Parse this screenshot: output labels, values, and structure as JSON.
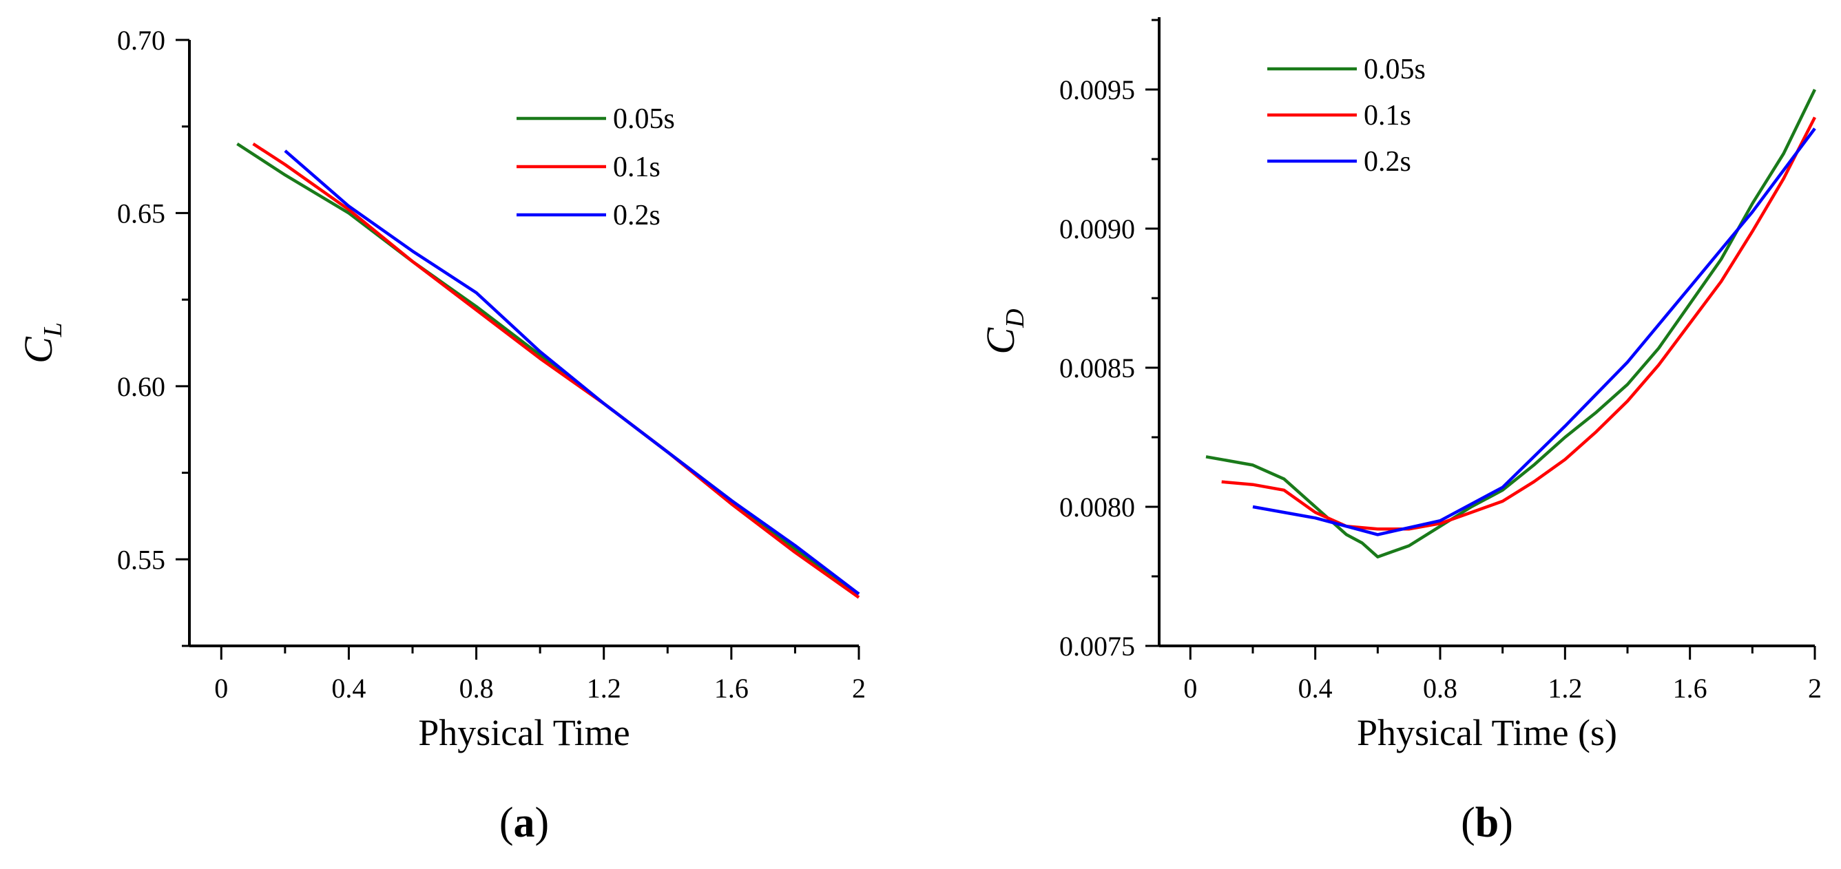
{
  "chart_data": [
    {
      "type": "line",
      "panel_label": "(a)",
      "xlabel": "Physical Time",
      "ylabel": "C",
      "ylabel_sub": "L",
      "xlim": [
        -0.1,
        2.0
      ],
      "ylim": [
        0.525,
        0.7
      ],
      "xticks": [
        0,
        0.4,
        0.8,
        1.2,
        1.6,
        2.0
      ],
      "xtick_labels": [
        "0",
        "0.4",
        "0.8",
        "1.2",
        "1.6",
        "2"
      ],
      "yticks": [
        0.55,
        0.6,
        0.65,
        0.7
      ],
      "ytick_labels": [
        "0.55",
        "0.60",
        "0.65",
        "0.70"
      ],
      "legend_position": "top-right",
      "series": [
        {
          "name": "0.05s",
          "color": "#1a7a1a",
          "x": [
            0.05,
            0.2,
            0.4,
            0.6,
            0.8,
            1.0,
            1.2,
            1.4,
            1.6,
            1.8,
            2.0
          ],
          "y": [
            0.67,
            0.661,
            0.65,
            0.636,
            0.623,
            0.609,
            0.595,
            0.581,
            0.567,
            0.553,
            0.54
          ]
        },
        {
          "name": "0.1s",
          "color": "#ff0000",
          "x": [
            0.1,
            0.2,
            0.4,
            0.6,
            0.8,
            1.0,
            1.2,
            1.4,
            1.6,
            1.8,
            2.0
          ],
          "y": [
            0.67,
            0.664,
            0.651,
            0.636,
            0.622,
            0.608,
            0.595,
            0.581,
            0.566,
            0.552,
            0.539
          ]
        },
        {
          "name": "0.2s",
          "color": "#0000ff",
          "x": [
            0.2,
            0.4,
            0.6,
            0.8,
            1.0,
            1.2,
            1.4,
            1.6,
            1.8,
            2.0
          ],
          "y": [
            0.668,
            0.652,
            0.639,
            0.627,
            0.61,
            0.595,
            0.581,
            0.567,
            0.554,
            0.54
          ]
        }
      ]
    },
    {
      "type": "line",
      "panel_label": "(b)",
      "xlabel": "Physical Time (s)",
      "ylabel": "C",
      "ylabel_sub": "D",
      "xlim": [
        -0.1,
        2.0
      ],
      "ylim": [
        0.0075,
        0.00976
      ],
      "xticks": [
        0,
        0.4,
        0.8,
        1.2,
        1.6,
        2.0
      ],
      "xtick_labels": [
        "0",
        "0.4",
        "0.8",
        "1.2",
        "1.6",
        "2"
      ],
      "yticks": [
        0.0075,
        0.008,
        0.0085,
        0.009,
        0.0095
      ],
      "ytick_labels": [
        "0.0075",
        "0.0080",
        "0.0085",
        "0.0090",
        "0.0095"
      ],
      "legend_position": "top-left",
      "series": [
        {
          "name": "0.05s",
          "color": "#1a7a1a",
          "x": [
            0.05,
            0.1,
            0.2,
            0.3,
            0.4,
            0.5,
            0.55,
            0.6,
            0.65,
            0.7,
            0.8,
            0.9,
            1.0,
            1.1,
            1.2,
            1.3,
            1.4,
            1.5,
            1.6,
            1.7,
            1.8,
            1.9,
            2.0
          ],
          "y": [
            0.00818,
            0.00817,
            0.00815,
            0.0081,
            0.008,
            0.0079,
            0.00787,
            0.00782,
            0.00784,
            0.00786,
            0.00793,
            0.008,
            0.00806,
            0.00815,
            0.00825,
            0.00834,
            0.00844,
            0.00857,
            0.00873,
            0.00889,
            0.00909,
            0.00927,
            0.0095
          ]
        },
        {
          "name": "0.1s",
          "color": "#ff0000",
          "x": [
            0.1,
            0.2,
            0.3,
            0.4,
            0.5,
            0.6,
            0.7,
            0.8,
            0.9,
            1.0,
            1.1,
            1.2,
            1.3,
            1.4,
            1.5,
            1.6,
            1.7,
            1.8,
            1.9,
            2.0
          ],
          "y": [
            0.00809,
            0.00808,
            0.00806,
            0.00798,
            0.00793,
            0.00792,
            0.00792,
            0.00794,
            0.00798,
            0.00802,
            0.00809,
            0.00817,
            0.00827,
            0.00838,
            0.00851,
            0.00866,
            0.00881,
            0.00899,
            0.00918,
            0.0094
          ]
        },
        {
          "name": "0.2s",
          "color": "#0000ff",
          "x": [
            0.2,
            0.4,
            0.6,
            0.8,
            1.0,
            1.2,
            1.4,
            1.6,
            1.8,
            2.0
          ],
          "y": [
            0.008,
            0.00796,
            0.0079,
            0.00795,
            0.00807,
            0.00829,
            0.00852,
            0.00879,
            0.00906,
            0.00936
          ]
        }
      ]
    }
  ]
}
